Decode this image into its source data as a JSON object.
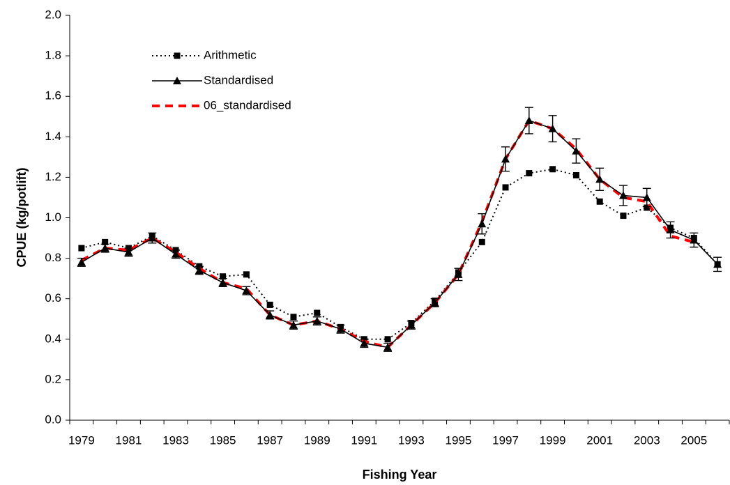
{
  "chart_data": {
    "type": "line",
    "xlabel": "Fishing Year",
    "ylabel": "CPUE (kg/potlift)",
    "categories": [
      "1979",
      null,
      "1981",
      null,
      "1983",
      null,
      "1985",
      null,
      "1987",
      null,
      "1989",
      null,
      "1991",
      null,
      "1993",
      null,
      "1995",
      null,
      "1997",
      null,
      "1999",
      null,
      "2001",
      null,
      "2003",
      null,
      "2005",
      null
    ],
    "ylim": [
      0,
      2
    ],
    "yticks": [
      {
        "value": 0,
        "label": "0.0"
      },
      0.2,
      0.4,
      0.6,
      0.8,
      {
        "value": 1,
        "label": "1.0"
      },
      1.2,
      1.4,
      1.6,
      1.8,
      {
        "value": 2,
        "label": "2.0"
      }
    ],
    "legend": "upper left",
    "series": [
      {
        "name": "Arithmetic",
        "color": "#000000",
        "style": "dotted",
        "marker": "square",
        "values": [
          0.85,
          0.88,
          0.85,
          0.91,
          0.84,
          0.76,
          0.71,
          0.72,
          0.57,
          0.51,
          0.53,
          0.46,
          0.4,
          0.4,
          0.48,
          0.59,
          0.73,
          0.88,
          1.15,
          1.22,
          1.24,
          1.21,
          1.08,
          1.01,
          1.05,
          0.95,
          0.9,
          0.77
        ]
      },
      {
        "name": "Standardised",
        "color": "#000000",
        "style": "solid",
        "marker": "triangle",
        "values": [
          0.78,
          0.85,
          0.83,
          0.9,
          0.82,
          0.74,
          0.68,
          0.64,
          0.52,
          0.47,
          0.49,
          0.45,
          0.38,
          0.36,
          0.47,
          0.58,
          0.72,
          0.97,
          1.29,
          1.48,
          1.44,
          1.33,
          1.19,
          1.11,
          1.1,
          0.94,
          0.89,
          0.77
        ],
        "errors": [
          0.02,
          0.02,
          0.02,
          0.025,
          0.02,
          0.02,
          0.02,
          0.02,
          0.02,
          0.02,
          0.02,
          0.02,
          0.02,
          0.02,
          0.02,
          0.02,
          0.03,
          0.05,
          0.06,
          0.065,
          0.065,
          0.06,
          0.055,
          0.05,
          0.045,
          0.04,
          0.035,
          0.035
        ]
      },
      {
        "name": "06_standardised",
        "color": "#ff0000",
        "style": "dashed",
        "marker": "none",
        "values": [
          0.79,
          0.85,
          0.84,
          0.9,
          0.83,
          0.75,
          0.68,
          0.65,
          0.52,
          0.47,
          0.49,
          0.45,
          0.39,
          0.36,
          0.47,
          0.58,
          0.72,
          0.98,
          1.29,
          1.48,
          1.44,
          1.34,
          1.19,
          1.1,
          1.08,
          0.91,
          0.88,
          null
        ]
      }
    ]
  }
}
